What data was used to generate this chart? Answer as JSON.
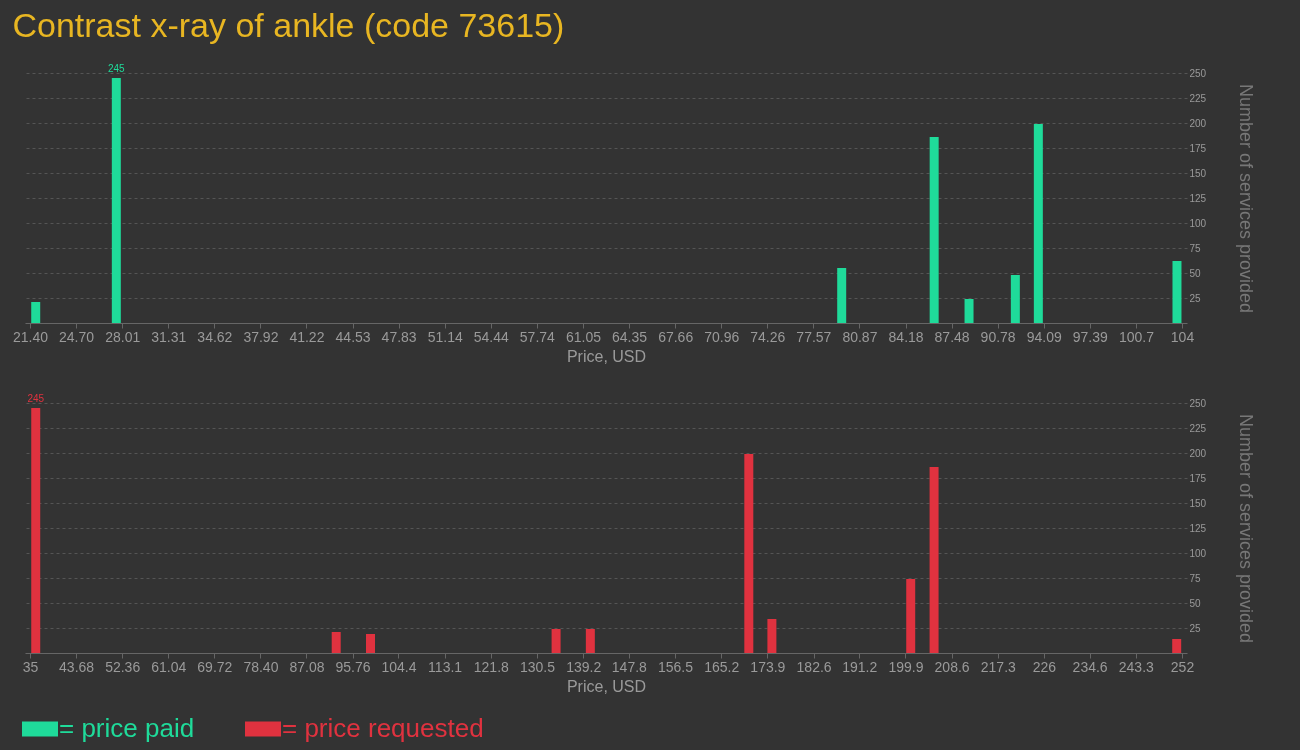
{
  "chart_data": [
    {
      "type": "bar",
      "title": "Contrast x-ray of ankle (code 73615)",
      "xlabel": "Price, USD",
      "ylabel": "Number of services provided",
      "xlim": [
        21.4,
        104
      ],
      "xticks": [
        {
          "value": 21.4,
          "label": "21.40"
        },
        {
          "value": 24.7,
          "label": "24.70"
        },
        28.01,
        31.31,
        34.62,
        37.92,
        41.22,
        44.53,
        47.83,
        51.14,
        54.44,
        57.74,
        61.05,
        64.35,
        67.66,
        70.96,
        74.26,
        77.57,
        80.87,
        84.18,
        87.48,
        90.78,
        94.09,
        97.39,
        100.7,
        104
      ],
      "ylim": [
        0,
        250
      ],
      "yticks": [
        25,
        50,
        75,
        100,
        125,
        150,
        175,
        200,
        225,
        250
      ],
      "grid": "y",
      "legend": "bottom left",
      "series": [
        {
          "name": "= price paid",
          "color": "#1fdb9a",
          "x": [
            21.81,
            27.59,
            79.6,
            86.23,
            88.73,
            92.05,
            93.7,
            103.64
          ],
          "values": [
            21,
            245,
            55,
            186,
            24,
            48,
            199,
            62
          ],
          "value_labels": [
            null,
            "245",
            null,
            null,
            null,
            null,
            null,
            null
          ]
        }
      ]
    },
    {
      "type": "bar",
      "xlabel": "Price, USD",
      "ylabel": "Number of services provided",
      "xlim": [
        35,
        252
      ],
      "xticks": [
        35,
        43.68,
        52.36,
        61.04,
        69.72,
        {
          "value": 78.4,
          "label": "78.40"
        },
        87.08,
        95.76,
        104.4,
        113.1,
        121.8,
        130.5,
        139.2,
        147.8,
        156.5,
        165.2,
        173.9,
        182.6,
        191.2,
        199.9,
        208.6,
        217.3,
        226,
        234.6,
        243.3,
        252
      ],
      "ylim": [
        0,
        250
      ],
      "yticks": [
        25,
        50,
        75,
        100,
        125,
        150,
        175,
        200,
        225,
        250
      ],
      "grid": "y",
      "legend": "bottom left",
      "series": [
        {
          "name": "= price requested",
          "color": "#e0323f",
          "x": [
            36.08,
            92.68,
            99.14,
            134.1,
            140.55,
            170.4,
            174.75,
            200.9,
            205.3,
            251.0
          ],
          "values": [
            245,
            21,
            19,
            24,
            24,
            199,
            34,
            74,
            186,
            14
          ],
          "value_labels": [
            "245",
            null,
            null,
            null,
            null,
            null,
            null,
            null,
            null,
            null
          ]
        }
      ]
    }
  ]
}
